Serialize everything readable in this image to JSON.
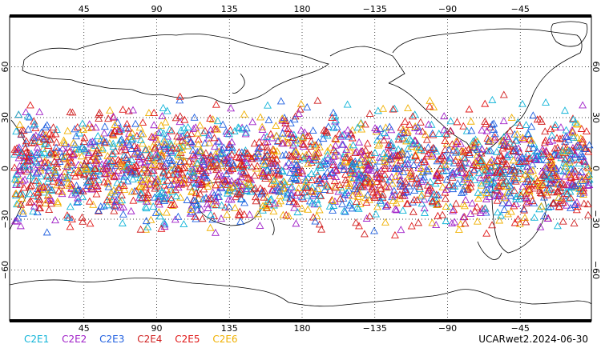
{
  "map": {
    "top_lon_labels": [
      "45",
      "90",
      "135",
      "180",
      "−135",
      "−90",
      "−45"
    ],
    "bottom_lon_labels": [
      "45",
      "90",
      "135",
      "180",
      "−135",
      "−90",
      "−45"
    ],
    "lat_labels": [
      "60",
      "30",
      "0",
      "−30",
      "−60"
    ],
    "lon_values": [
      45,
      90,
      135,
      180,
      -135,
      -90,
      -45
    ],
    "lat_values": [
      60,
      30,
      0,
      -30,
      -60
    ],
    "lon_range": [
      0,
      360
    ],
    "lat_range": [
      -90,
      90
    ],
    "gridlines": true,
    "marker": "triangle-outline"
  },
  "legend": {
    "items": [
      {
        "label": "C2E1",
        "color": "#10b4d8"
      },
      {
        "label": "C2E2",
        "color": "#a020c8"
      },
      {
        "label": "C2E3",
        "color": "#2060e0"
      },
      {
        "label": "C2E4",
        "color": "#d02020"
      },
      {
        "label": "C2E5",
        "color": "#e01818"
      },
      {
        "label": "C2E6",
        "color": "#f0b000"
      }
    ]
  },
  "product": {
    "label": "UCARwet2.2024-06-30"
  }
}
